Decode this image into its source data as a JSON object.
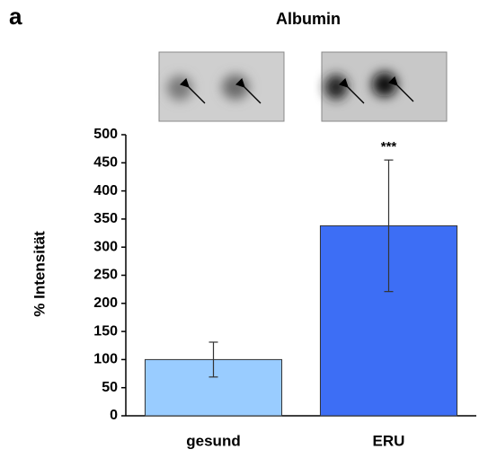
{
  "chart_data": {
    "type": "bar",
    "panel_label": "a",
    "title": "Albumin",
    "y_label": "% Intensität",
    "categories": [
      "gesund",
      "ERU"
    ],
    "values": [
      100,
      338
    ],
    "errors": [
      31,
      117
    ],
    "colors": [
      "#99ccff",
      "#3d6ef5"
    ],
    "ylim": [
      0,
      500
    ],
    "yticks": [
      0,
      50,
      100,
      150,
      200,
      250,
      300,
      350,
      400,
      450,
      500
    ],
    "annotations": [
      {
        "text": "***",
        "category": "ERU"
      }
    ]
  }
}
